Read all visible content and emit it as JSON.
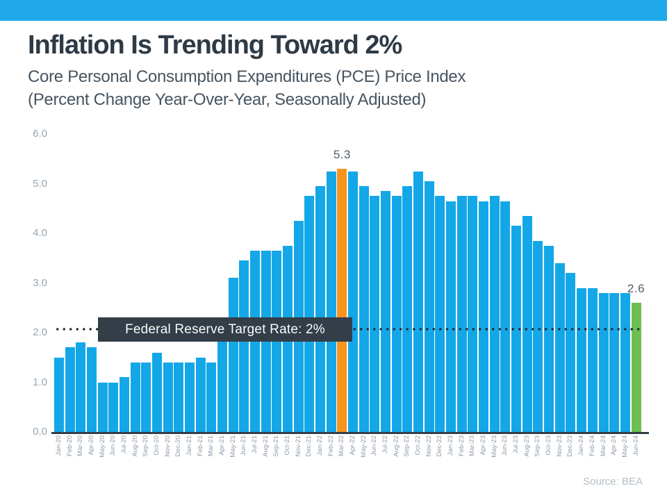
{
  "banner": {
    "color": "#1FA9EA"
  },
  "header": {
    "title": "Inflation Is Trending Toward 2%",
    "subtitle_line1": "Core Personal Consumption Expenditures (PCE) Price Index",
    "subtitle_line2": "(Percent Change Year-Over-Year, Seasonally Adjusted)"
  },
  "chart_data": {
    "type": "bar",
    "title": "Inflation Is Trending Toward 2%",
    "xlabel": "",
    "ylabel": "",
    "ylim": [
      0,
      6
    ],
    "yticks": [
      "0.0",
      "1.0",
      "2.0",
      "3.0",
      "4.0",
      "5.0",
      "6.0"
    ],
    "grid": false,
    "bar_color_default": "#14A7E8",
    "categories": [
      "Jan-20",
      "Feb-20",
      "Mar-20",
      "Apr-20",
      "May-20",
      "Jun-20",
      "Jul-20",
      "Aug-20",
      "Sep-20",
      "Oct-20",
      "Nov-20",
      "Dec-20",
      "Jan-21",
      "Feb-21",
      "Mar-21",
      "Apr-21",
      "May-21",
      "Jun-21",
      "Jul-21",
      "Aug-21",
      "Sep-21",
      "Oct-21",
      "Nov-21",
      "Dec-21",
      "Jan-22",
      "Feb-22",
      "Mar-22",
      "Apr-22",
      "May-22",
      "Jun-22",
      "Jul-22",
      "Aug-22",
      "Sep-22",
      "Oct-22",
      "Nov-22",
      "Dec-22",
      "Jan-23",
      "Feb-23",
      "Mar-23",
      "Apr-23",
      "May-23",
      "Jun-23",
      "Jul-23",
      "Aug-23",
      "Sep-23",
      "Oct-23",
      "Nov-23",
      "Dec-23",
      "Jan-24",
      "Feb-24",
      "Mar-24",
      "Apr-24",
      "May-24",
      "Jun-24"
    ],
    "values": [
      1.5,
      1.7,
      1.8,
      1.7,
      1.0,
      1.0,
      1.1,
      1.4,
      1.4,
      1.6,
      1.4,
      1.4,
      1.4,
      1.5,
      1.4,
      2.0,
      3.1,
      3.45,
      3.65,
      3.65,
      3.65,
      3.75,
      4.25,
      4.75,
      4.95,
      5.25,
      5.3,
      5.25,
      4.95,
      4.75,
      4.85,
      4.75,
      4.95,
      5.25,
      5.05,
      4.75,
      4.65,
      4.75,
      4.75,
      4.65,
      4.75,
      4.65,
      4.15,
      4.35,
      3.85,
      3.75,
      3.4,
      3.2,
      2.9,
      2.9,
      2.8,
      2.8,
      2.8,
      2.6
    ],
    "highlight_bars": [
      {
        "category": "Mar-22",
        "index": 26,
        "color": "#F7941E",
        "label": "5.3"
      },
      {
        "category": "Jun-24",
        "index": 53,
        "color": "#6CBE4F",
        "label": "2.6"
      }
    ],
    "target_line": {
      "value": 2.0,
      "label": "Federal Reserve Target Rate: 2%",
      "style": "dotted",
      "color": "#232C34"
    },
    "legend": null
  },
  "footer": {
    "source": "Source: BEA"
  }
}
